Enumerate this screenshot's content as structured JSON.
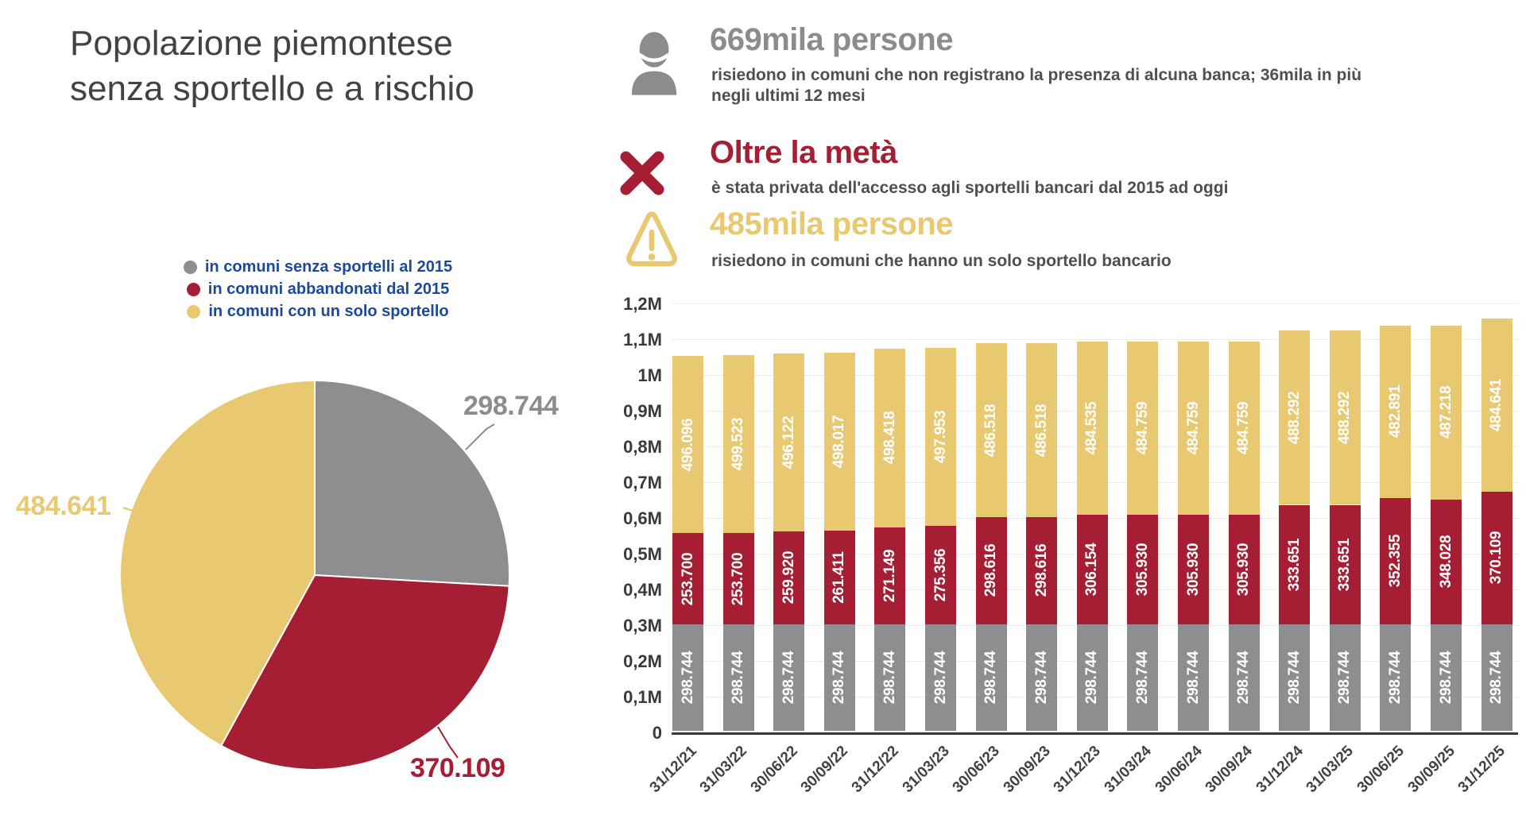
{
  "title": {
    "line1": "Popolazione piemontese",
    "line2": "senza sportello e a rischio"
  },
  "colors": {
    "gray": "#8e8e90",
    "red": "#a51e33",
    "yellow": "#e9c872",
    "legend_blue": "#1b4a9c",
    "heading_gray": "#8c8c8e",
    "title_dark": "#404247",
    "grid": "#ededed",
    "axis": "#39393b"
  },
  "legend": [
    {
      "color": "gray",
      "label": "in comuni senza sportelli al 2015"
    },
    {
      "color": "red",
      "label": "in comuni abbandonati dal 2015"
    },
    {
      "color": "yellow",
      "label": "in comuni con un solo sportello"
    }
  ],
  "stats": [
    {
      "heading": "669mila persone",
      "text_line1": "risiedono in comuni che non registrano la presenza di alcuna banca; 36mila in più",
      "text_line2": "negli ultimi 12 mesi"
    },
    {
      "heading": "Oltre la metà",
      "text_line1": "è stata privata dell'accesso agli sportelli bancari dal 2015 ad oggi",
      "text_line2": ""
    },
    {
      "heading": "485mila persone",
      "text_line1": "risiedono in comuni che hanno un solo sportello bancario",
      "text_line2": ""
    }
  ],
  "chart_data": [
    {
      "type": "pie",
      "title": "Popolazione piemontese senza sportello e a rischio",
      "slices": [
        {
          "label": "in comuni senza sportelli al 2015",
          "color": "gray",
          "value": 298744,
          "value_label": "298.744"
        },
        {
          "label": "in comuni abbandonati dal 2015",
          "color": "red",
          "value": 370109,
          "value_label": "370.109"
        },
        {
          "label": "in comuni con un solo sportello",
          "color": "yellow",
          "value": 484641,
          "value_label": "484.641"
        }
      ]
    },
    {
      "type": "bar",
      "stacked": true,
      "grid": true,
      "ylim": [
        0,
        1200000
      ],
      "y_ticks": [
        "0",
        "0,1M",
        "0,2M",
        "0,3M",
        "0,4M",
        "0,5M",
        "0,6M",
        "0,7M",
        "0,8M",
        "0,9M",
        "1M",
        "1,1M",
        "1,2M"
      ],
      "categories": [
        "31/12/21",
        "31/03/22",
        "30/06/22",
        "30/09/22",
        "31/12/22",
        "31/03/23",
        "30/06/23",
        "30/09/23",
        "31/12/23",
        "31/03/24",
        "30/06/24",
        "30/09/24",
        "31/12/24",
        "31/03/25",
        "30/06/25",
        "30/09/25",
        "31/12/25"
      ],
      "series": [
        {
          "name": "in comuni senza sportelli al 2015",
          "color": "gray",
          "values": [
            "298.744",
            "298.744",
            "298.744",
            "298.744",
            "298.744",
            "298.744",
            "298.744",
            "298.744",
            "298.744",
            "298.744",
            "298.744",
            "298.744",
            "298.744",
            "298.744",
            "298.744",
            "298.744",
            "298.744"
          ]
        },
        {
          "name": "in comuni abbandonati dal 2015",
          "color": "red",
          "values": [
            "253.700",
            "253.700",
            "259.920",
            "261.411",
            "271.149",
            "275.356",
            "298.616",
            "298.616",
            "306.154",
            "305.930",
            "305.930",
            "305.930",
            "333.651",
            "333.651",
            "352.355",
            "348.028",
            "370.109"
          ]
        },
        {
          "name": "in comuni con un solo sportello",
          "color": "yellow",
          "values": [
            "496.096",
            "499.523",
            "496.122",
            "498.017",
            "498.418",
            "497.953",
            "486.518",
            "486.518",
            "484.535",
            "484.759",
            "484.759",
            "484.759",
            "488.292",
            "488.292",
            "482.891",
            "487.218",
            "484.641"
          ]
        }
      ]
    }
  ]
}
